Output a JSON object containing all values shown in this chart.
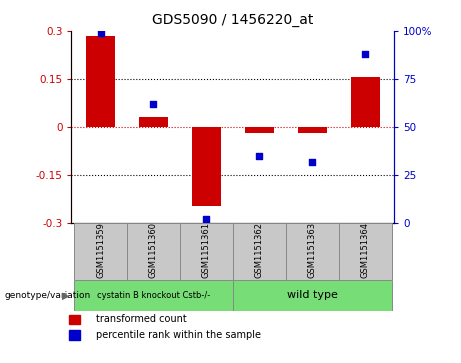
{
  "title": "GDS5090 / 1456220_at",
  "samples": [
    "GSM1151359",
    "GSM1151360",
    "GSM1151361",
    "GSM1151362",
    "GSM1151363",
    "GSM1151364"
  ],
  "bar_values": [
    0.285,
    0.03,
    -0.245,
    -0.02,
    -0.02,
    0.155
  ],
  "percentile_values": [
    99,
    62,
    2,
    35,
    32,
    88
  ],
  "bar_color": "#cc0000",
  "scatter_color": "#0000cc",
  "ylim_left": [
    -0.3,
    0.3
  ],
  "ylim_right": [
    0,
    100
  ],
  "yticks_left": [
    -0.3,
    -0.15,
    0,
    0.15,
    0.3
  ],
  "yticks_right": [
    0,
    25,
    50,
    75,
    100
  ],
  "ytick_labels_left": [
    "-0.3",
    "-0.15",
    "0",
    "0.15",
    "0.3"
  ],
  "ytick_labels_right": [
    "0",
    "25",
    "50",
    "75",
    "100%"
  ],
  "group1_label": "cystatin B knockout Cstb-/-",
  "group2_label": "wild type",
  "group1_color": "#77dd77",
  "group2_color": "#77dd77",
  "group1_indices": [
    0,
    1,
    2
  ],
  "group2_indices": [
    3,
    4,
    5
  ],
  "genotype_label": "genotype/variation",
  "legend_bar_label": "transformed count",
  "legend_scatter_label": "percentile rank within the sample",
  "bar_width": 0.55,
  "bg_color": "#ffffff",
  "plot_bg_color": "#ffffff",
  "sample_box_color": "#c8c8c8"
}
